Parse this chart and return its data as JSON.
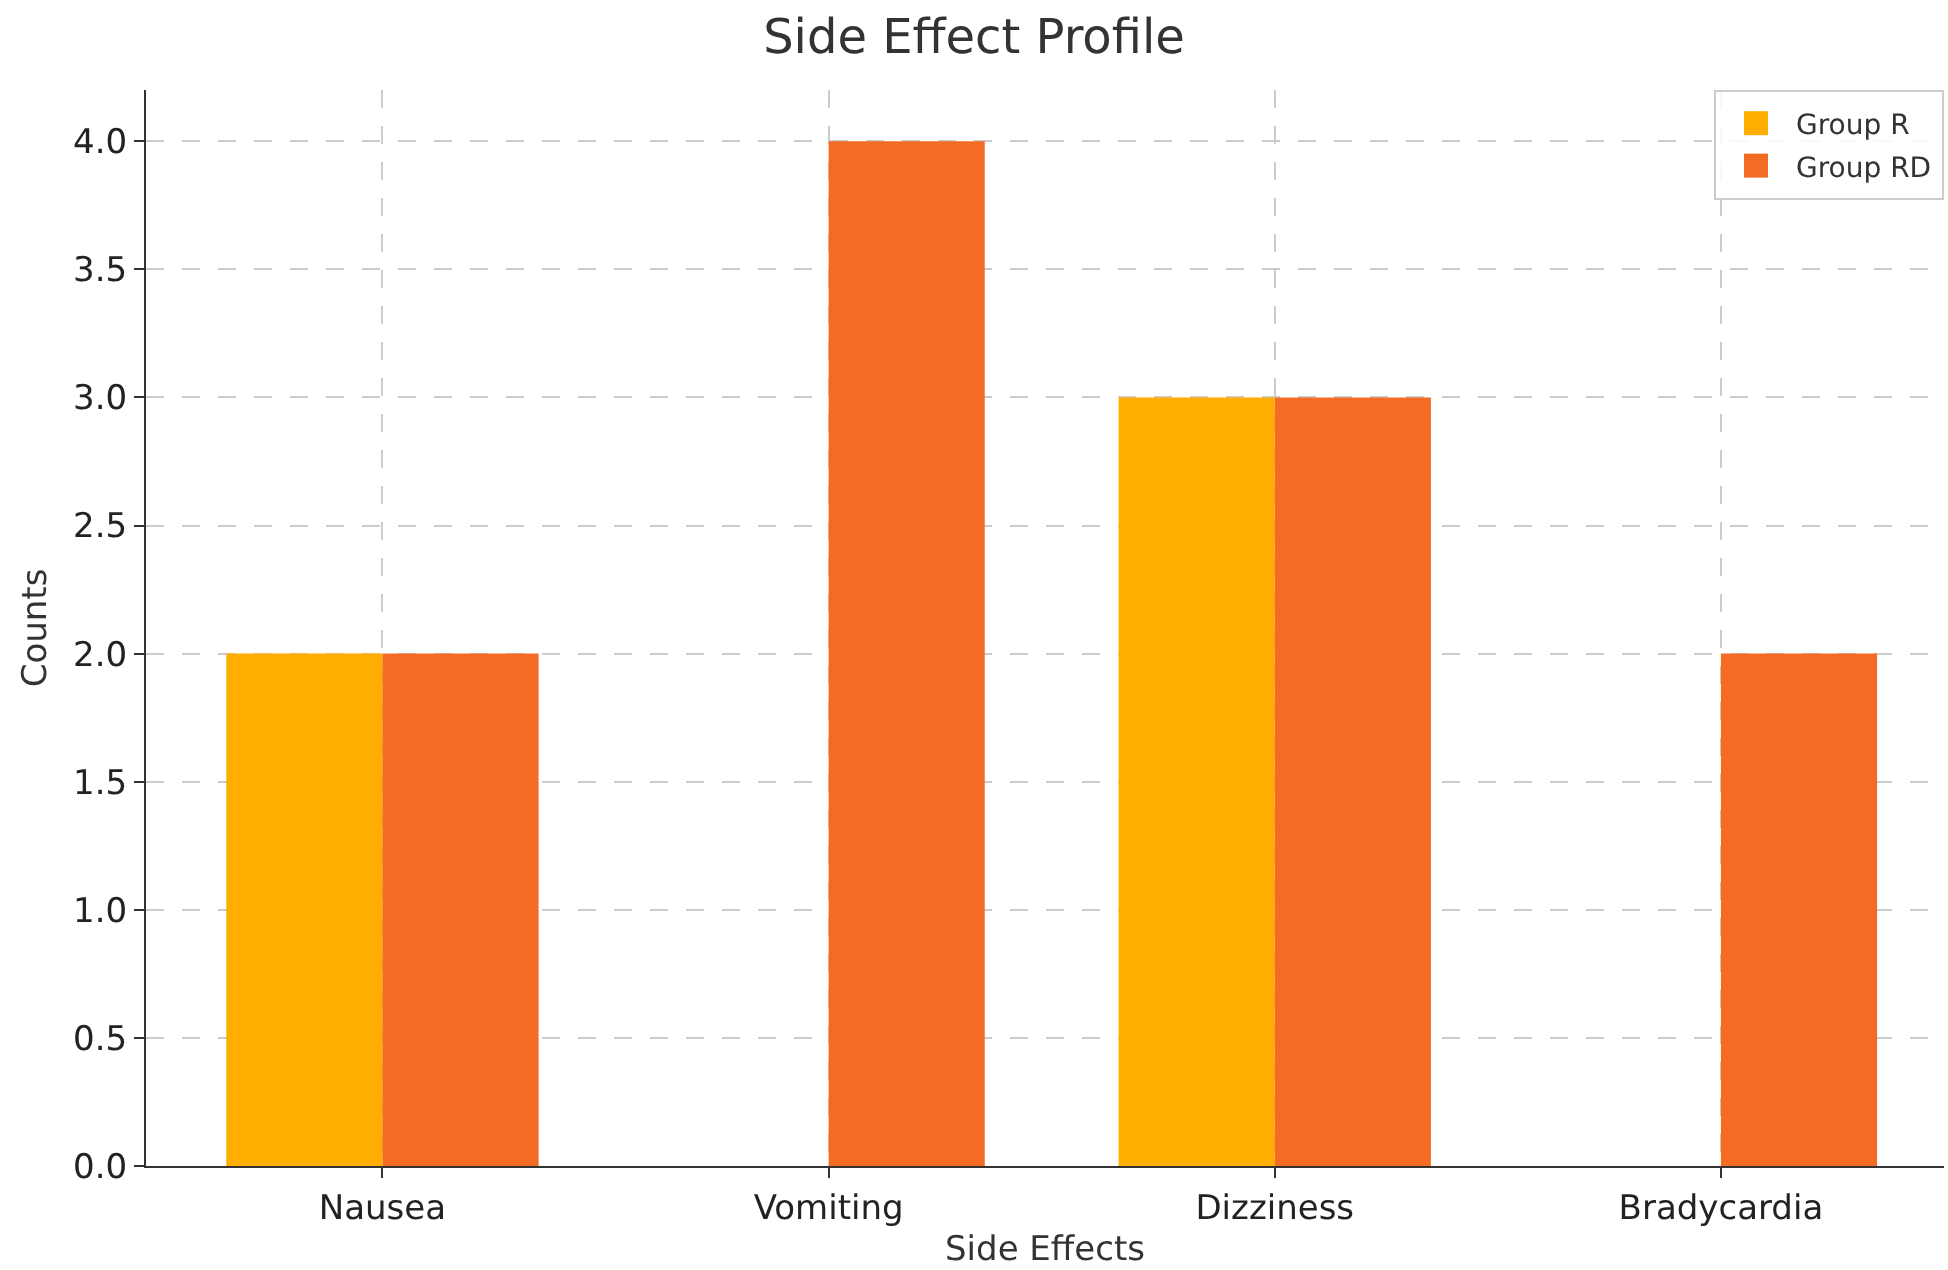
{
  "chart_data": {
    "type": "bar",
    "title": "Side Effect Profile",
    "xlabel": "Side Effects",
    "ylabel": "Counts",
    "categories": [
      "Nausea",
      "Vomiting",
      "Dizziness",
      "Bradycardia"
    ],
    "series": [
      {
        "name": "Group R",
        "color": "#ffae00",
        "values": [
          2,
          0,
          3,
          0
        ]
      },
      {
        "name": "Group RD",
        "color": "#f46b23",
        "values": [
          2,
          4,
          3,
          2
        ]
      }
    ],
    "ylim": [
      0,
      4.2
    ],
    "yticks": [
      {
        "value": 0,
        "label": "0.0"
      },
      {
        "value": 0.5,
        "label": "0.5"
      },
      {
        "value": 1,
        "label": "1.0"
      },
      {
        "value": 1.5,
        "label": "1.5"
      },
      {
        "value": 2,
        "label": "2.0"
      },
      {
        "value": 2.5,
        "label": "2.5"
      },
      {
        "value": 3,
        "label": "3.0"
      },
      {
        "value": 3.5,
        "label": "3.5"
      },
      {
        "value": 4,
        "label": "4.0"
      }
    ],
    "grid": true,
    "legend": "top right"
  }
}
